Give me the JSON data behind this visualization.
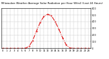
{
  "hours": [
    0,
    1,
    2,
    3,
    4,
    5,
    6,
    7,
    8,
    9,
    10,
    11,
    12,
    13,
    14,
    15,
    16,
    17,
    18,
    19,
    20,
    21,
    22,
    23
  ],
  "values": [
    0,
    0,
    0,
    0,
    0,
    0,
    2,
    30,
    120,
    260,
    390,
    480,
    510,
    490,
    400,
    290,
    160,
    50,
    5,
    0,
    0,
    0,
    0,
    0
  ],
  "line_color": "#dd0000",
  "bg_color": "#ffffff",
  "grid_color": "#999999",
  "title": "Milwaukee Weather Average Solar Radiation per Hour W/m2 (Last 24 Hours)",
  "title_fontsize": 2.8,
  "ylim": [
    0,
    600
  ],
  "yticks": [
    0,
    100,
    200,
    300,
    400,
    500,
    600
  ],
  "xticks": [
    0,
    1,
    2,
    3,
    4,
    5,
    6,
    7,
    8,
    9,
    10,
    11,
    12,
    13,
    14,
    15,
    16,
    17,
    18,
    19,
    20,
    21,
    22,
    23
  ],
  "tick_fontsize": 2.5
}
